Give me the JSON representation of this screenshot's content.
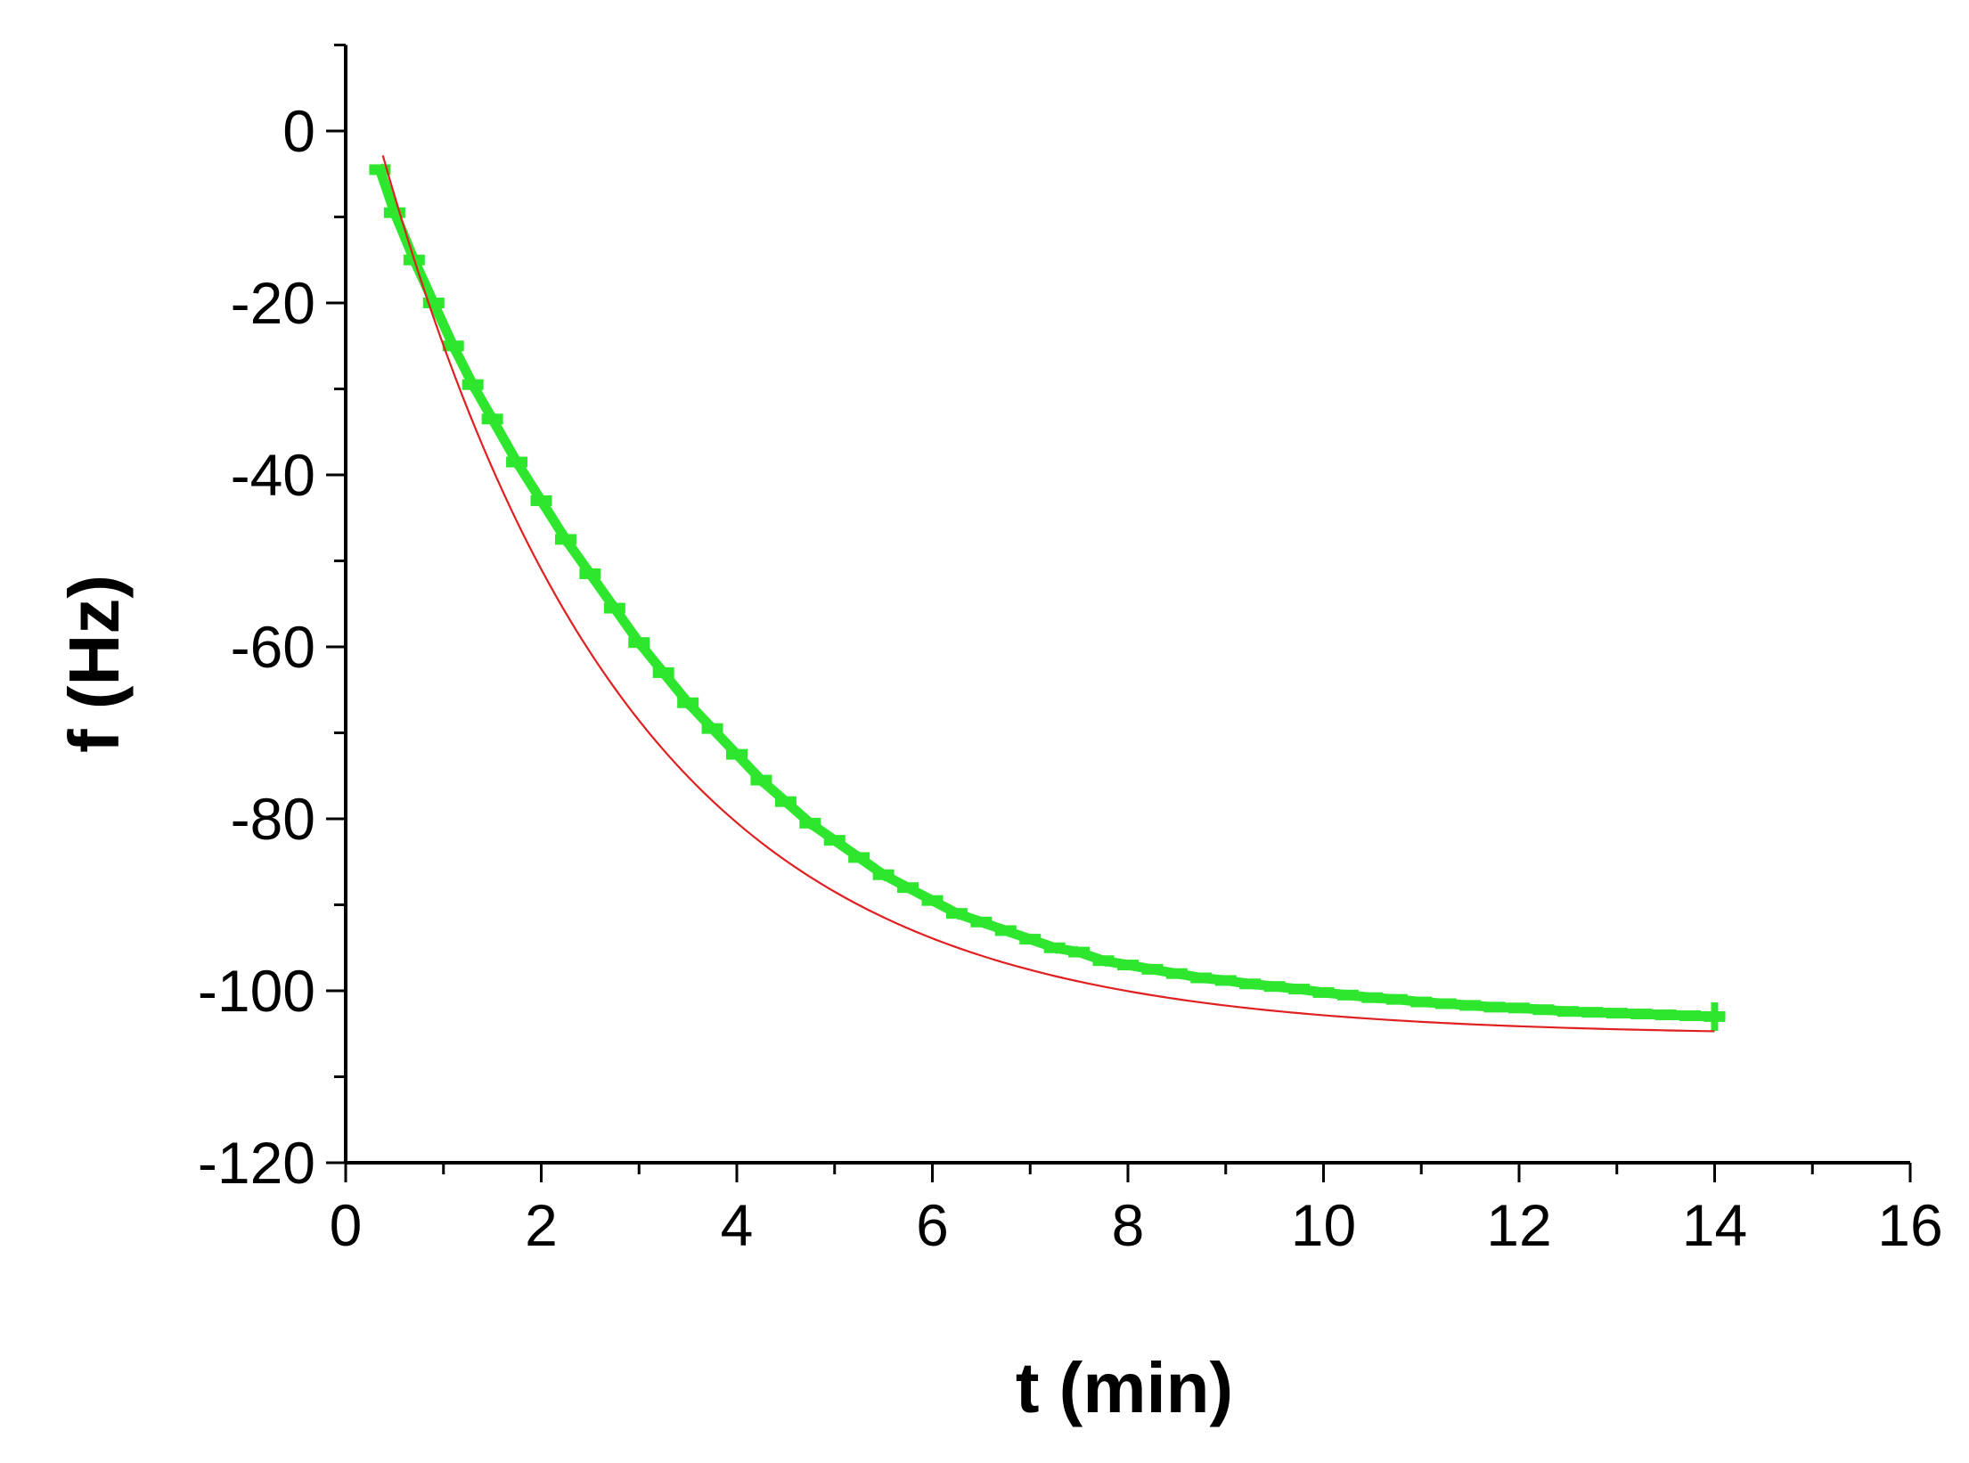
{
  "chart_data": {
    "type": "scatter",
    "title": "",
    "xlabel": "t (min)",
    "ylabel": "f (Hz)",
    "xlim": [
      0,
      16
    ],
    "ylim": [
      -120,
      10
    ],
    "x_ticks": [
      0,
      2,
      4,
      6,
      8,
      10,
      12,
      14,
      16
    ],
    "x_tick_labels": [
      "0",
      "2",
      "4",
      "6",
      "8",
      "10",
      "12",
      "14",
      "16"
    ],
    "y_ticks": [
      0,
      -20,
      -40,
      -60,
      -80,
      -100,
      -120
    ],
    "y_tick_labels": [
      "0",
      "-20",
      "-40",
      "-60",
      "-80",
      "-100",
      "-120"
    ],
    "grid": false,
    "series": [
      {
        "kind": "scatter",
        "color": "#2ee62e",
        "x": [
          0.35,
          0.5,
          0.7,
          0.9,
          1.1,
          1.3,
          1.5,
          1.75,
          2.0,
          2.25,
          2.5,
          2.75,
          3.0,
          3.25,
          3.5,
          3.75,
          4.0,
          4.25,
          4.5,
          4.75,
          5.0,
          5.25,
          5.5,
          5.75,
          6.0,
          6.25,
          6.5,
          6.75,
          7.0,
          7.25,
          7.5,
          7.75,
          8.0,
          8.25,
          8.5,
          8.75,
          9.0,
          9.25,
          9.5,
          9.75,
          10.0,
          10.25,
          10.5,
          10.75,
          11.0,
          11.25,
          11.5,
          11.75,
          12.0,
          12.25,
          12.5,
          12.75,
          13.0,
          13.25,
          13.5,
          13.75,
          14.0
        ],
        "y": [
          -4.5,
          -9.5,
          -15.0,
          -20.0,
          -25.0,
          -29.5,
          -33.5,
          -38.5,
          -43.0,
          -47.5,
          -51.5,
          -55.5,
          -59.5,
          -63.0,
          -66.5,
          -69.5,
          -72.5,
          -75.5,
          -78.0,
          -80.5,
          -82.5,
          -84.5,
          -86.5,
          -88.0,
          -89.5,
          -91.0,
          -92.0,
          -93.0,
          -94.0,
          -95.0,
          -95.5,
          -96.5,
          -97.0,
          -97.5,
          -98.0,
          -98.5,
          -98.8,
          -99.2,
          -99.5,
          -99.8,
          -100.2,
          -100.5,
          -100.8,
          -101.0,
          -101.3,
          -101.5,
          -101.7,
          -101.9,
          -102.0,
          -102.2,
          -102.4,
          -102.5,
          -102.6,
          -102.7,
          -102.8,
          -102.9,
          -103.0
        ]
      },
      {
        "kind": "line",
        "color": "#e02020",
        "fit": {
          "model": "exponential-decay",
          "y0": -105.2,
          "A": 118.8,
          "tau": 2.55,
          "x_start": 0.38,
          "x_end": 14.0
        }
      }
    ]
  }
}
